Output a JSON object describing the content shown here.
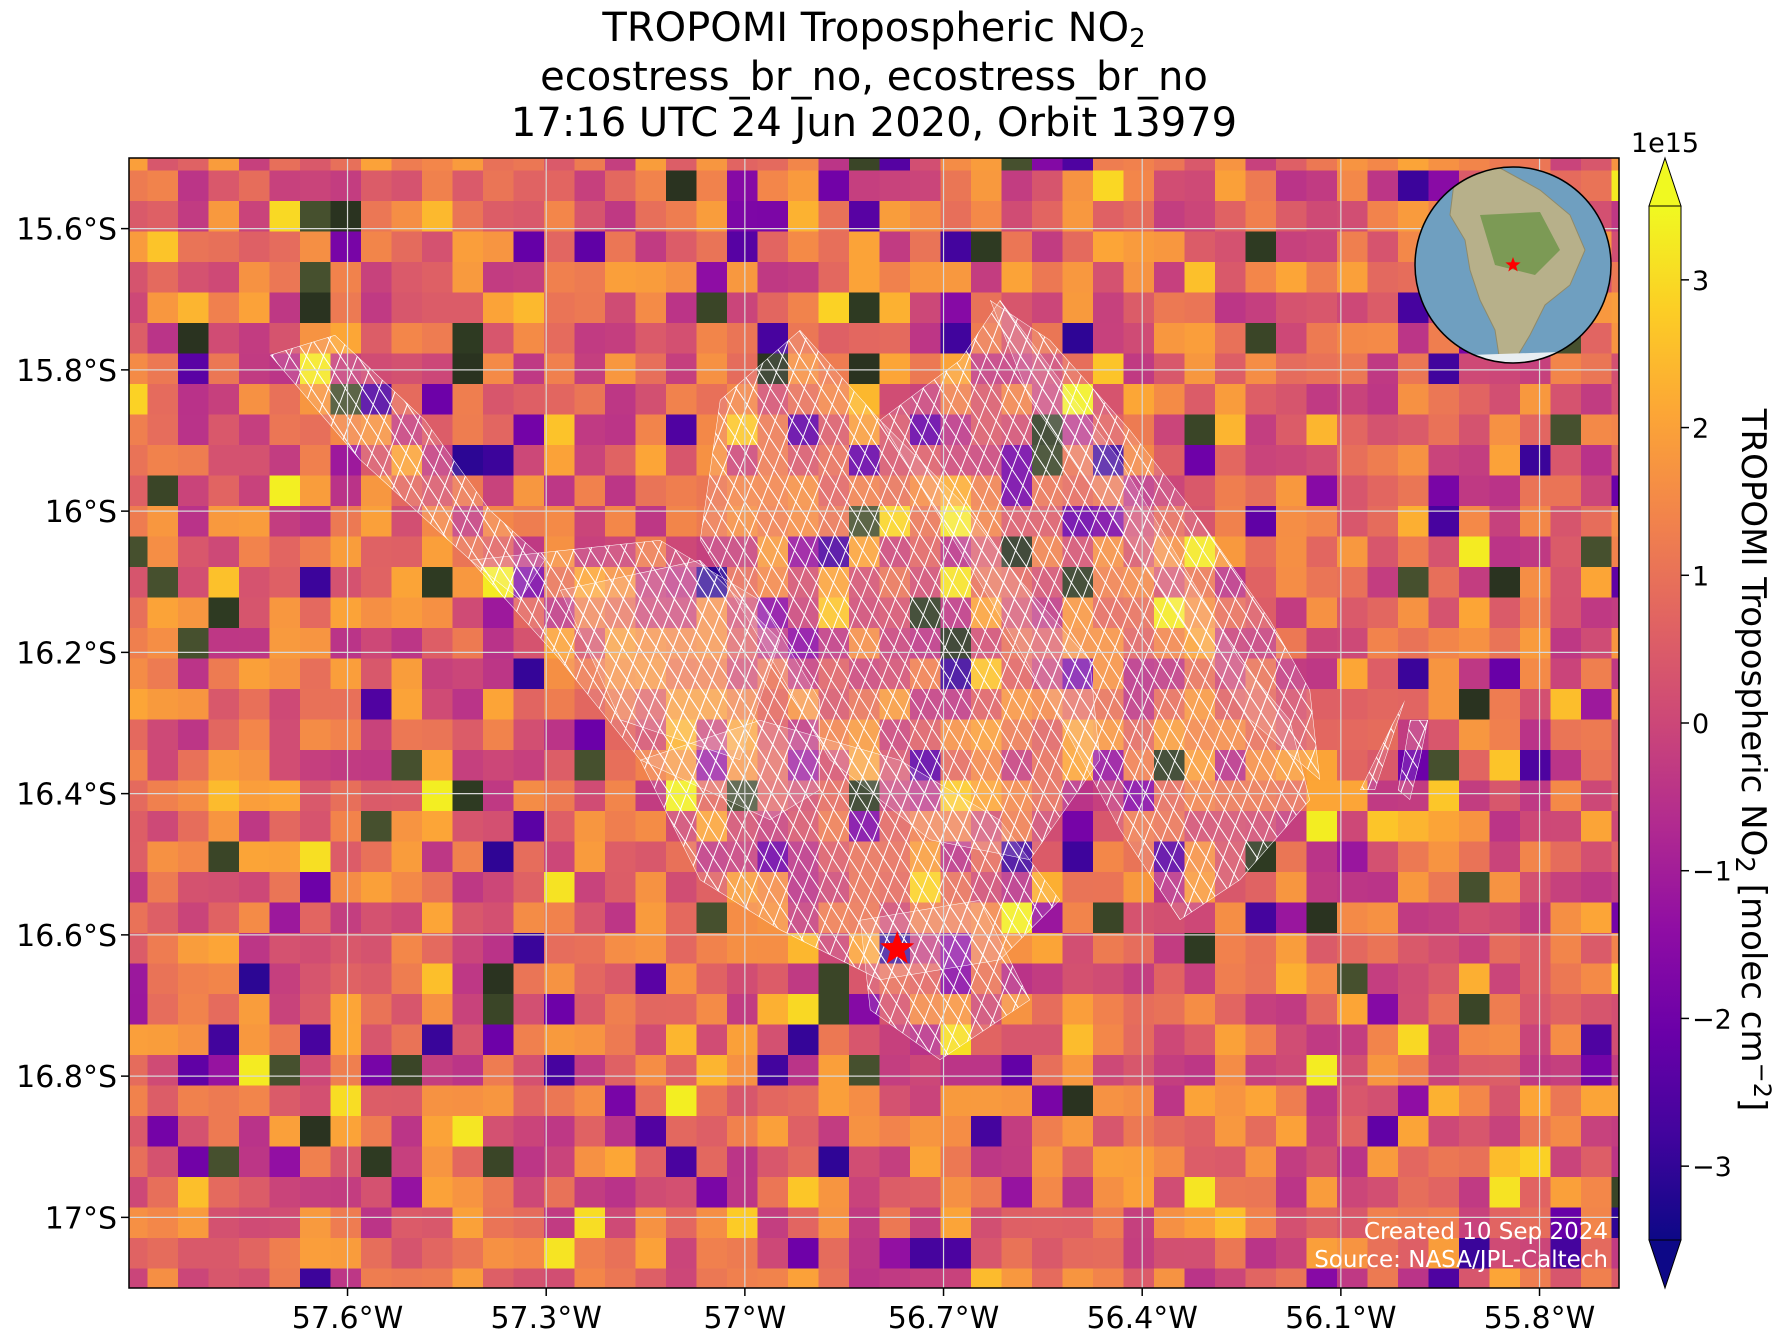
{
  "title": {
    "line1_main": "TROPOMI Tropospheric NO",
    "line1_sub": "2",
    "line2": "ecostress_br_no, ecostress_br_no",
    "line3": "17:16 UTC 24 Jun 2020, Orbit 13979"
  },
  "colorbar": {
    "label_main": "TROPOMI Tropospheric NO",
    "label_sub": "2",
    "label_units_pre": " [molec cm",
    "label_units_sup": "−2",
    "label_units_post": "]",
    "exponent": "1e15",
    "range": [
      -3.5,
      3.5
    ],
    "extend": "both",
    "ticks": [
      -3,
      -2,
      -1,
      0,
      1,
      2,
      3
    ],
    "tick_labels": [
      "−3",
      "−2",
      "−1",
      "0",
      "1",
      "2",
      "3"
    ],
    "colormap": "plasma"
  },
  "credits": {
    "line1": "Created 10 Sep 2024",
    "line2": "Source: NASA/JPL-Caltech"
  },
  "chart_data": {
    "type": "heatmap",
    "projection": "map",
    "lon_range": [
      -57.93,
      -55.68
    ],
    "lat_range": [
      -17.1,
      -15.5
    ],
    "grid": true,
    "x_ticks": [
      -57.6,
      -57.3,
      -57.0,
      -56.7,
      -56.4,
      -56.1,
      -55.8
    ],
    "x_tick_labels": [
      "57.6°W",
      "57.3°W",
      "57°W",
      "56.7°W",
      "56.4°W",
      "56.1°W",
      "55.8°W"
    ],
    "y_ticks": [
      -15.6,
      -15.8,
      -16.0,
      -16.2,
      -16.4,
      -16.6,
      -16.8,
      -17.0
    ],
    "y_tick_labels": [
      "15.6°S",
      "15.8°S",
      "16°S",
      "16.2°S",
      "16.4°S",
      "16.6°S",
      "16.8°S",
      "17°S"
    ],
    "field": "TROPOMI tropospheric NO2 column (x1e15 molec cm-2), pixel values spanning approximately -3.5 to 3.5, mostly -1 to 2",
    "target_marker": {
      "lon": -56.77,
      "lat": -16.62,
      "symbol": "star",
      "color": "#ff0000"
    },
    "overlay": "ECOSTRESS footprint grid (white outline)",
    "inset": "orthographic globe centered on South America with red star at target",
    "colors": {
      "grid": "#d8d8d8",
      "overlay": "#ffffff",
      "marker": "#ff0000"
    }
  }
}
